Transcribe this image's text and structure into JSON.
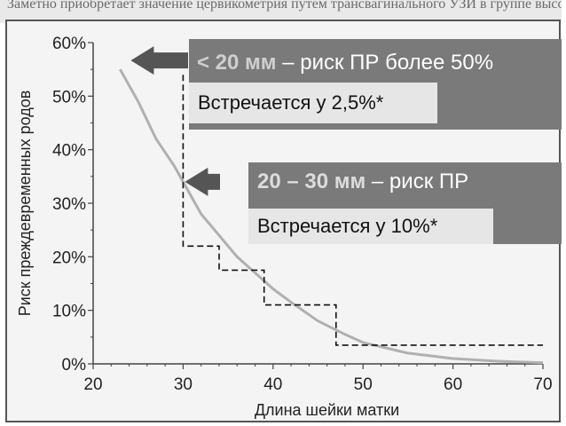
{
  "top_text": "Заметно приобретает значение цервикометрия путем трансвагинального УЗИ в группе высокого риска",
  "chart_data": {
    "type": "line",
    "xlabel": "Длина шейки матки",
    "ylabel": "Риск преждевременных родов",
    "xlim": [
      20,
      70
    ],
    "ylim": [
      0,
      60
    ],
    "x_ticks": [
      "20",
      "30",
      "40",
      "50",
      "60",
      "70"
    ],
    "y_ticks": [
      "0%",
      "10%",
      "20%",
      "30%",
      "40%",
      "50%",
      "60%"
    ],
    "grid": false,
    "curve": {
      "x": [
        23,
        25,
        27,
        29,
        30,
        32,
        34,
        36,
        38,
        40,
        42,
        45,
        48,
        50,
        55,
        60,
        65,
        70
      ],
      "y": [
        55,
        49,
        42,
        37,
        34,
        28,
        24,
        20,
        17,
        14,
        11.5,
        8,
        5.5,
        4,
        2,
        1,
        0.5,
        0.2
      ]
    },
    "step": {
      "x": [
        30,
        30,
        34,
        34,
        39,
        39,
        47,
        47,
        70
      ],
      "y": [
        54,
        22,
        22,
        17.5,
        17.5,
        11,
        11,
        3.5,
        3.5
      ]
    },
    "colors": {
      "curve": "#b0b0b0",
      "step": "#111111",
      "arrow": "#555555"
    }
  },
  "callouts": [
    {
      "highlight": "< 20 мм",
      "text": " – риск ПР более 50%",
      "note": "Встречается у 2,5%*"
    },
    {
      "highlight": "20 – 30 мм",
      "text": " – риск ПР",
      "note": "Встречается у 10%*"
    }
  ]
}
